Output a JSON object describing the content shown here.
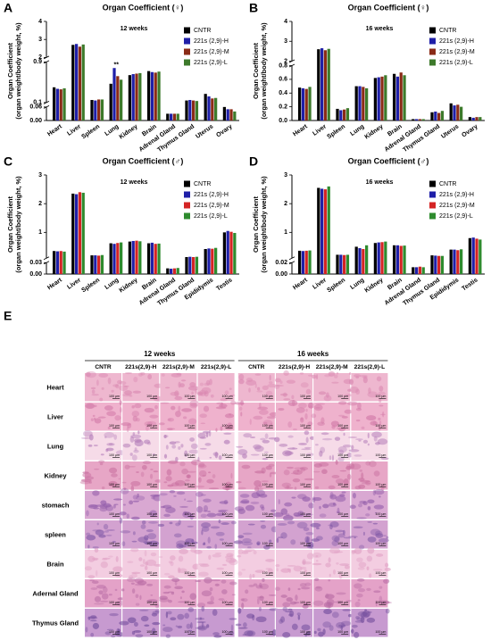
{
  "chart_data": [
    {
      "type": "bar",
      "panel_label": "A",
      "title": "Organ Coefficient (♀)",
      "subtitle": "12 weeks",
      "y_label": [
        "Organ Coefficient",
        "(organ weight/body weight, %)"
      ],
      "categories": [
        "Heart",
        "Liver",
        "Spleen",
        "Lung",
        "Kidney",
        "Brain",
        "Adrenal Gland",
        "Thymus Gland",
        "Uterus",
        "Ovary"
      ],
      "ylim": [
        0,
        4
      ],
      "y_breaks": [
        [
          0.06,
          0.1
        ],
        [
          0.9,
          2
        ]
      ],
      "yticks": [
        {
          "value": 0,
          "label": "0.00"
        },
        0.06,
        0.1,
        0.9,
        2,
        3,
        4
      ],
      "series": [
        {
          "name": "CNTR",
          "color": "#000000",
          "values": [
            0.4,
            2.7,
            0.15,
            0.47,
            0.64,
            0.72,
            0.03,
            0.14,
            0.27,
            0.06
          ]
        },
        {
          "name": "221s (2,9)-H",
          "color": "#1f1fa8",
          "values": [
            0.37,
            2.75,
            0.14,
            0.78,
            0.66,
            0.7,
            0.03,
            0.15,
            0.22,
            0.05
          ]
        },
        {
          "name": "221s (2,9)-M",
          "color": "#8a2b17",
          "values": [
            0.36,
            2.6,
            0.16,
            0.62,
            0.67,
            0.69,
            0.03,
            0.14,
            0.18,
            0.05
          ]
        },
        {
          "name": "221s (2,9)-L",
          "color": "#3d7a2b",
          "values": [
            0.38,
            2.72,
            0.16,
            0.55,
            0.68,
            0.71,
            0.03,
            0.13,
            0.19,
            0.04
          ]
        }
      ],
      "annotations": [
        {
          "text": "**",
          "category": "Lung",
          "y": 0.84
        }
      ]
    },
    {
      "type": "bar",
      "panel_label": "B",
      "title": "Organ Coefficient (♀)",
      "subtitle": "16 weeks",
      "y_label": [
        "Organ Coefficient",
        "(organ weight/body weight, %)"
      ],
      "categories": [
        "Heart",
        "Liver",
        "Spleen",
        "Lung",
        "Kidney",
        "Brain",
        "Adrenal Gland",
        "Thymus Gland",
        "Uterus",
        "Ovary"
      ],
      "ylim": [
        0,
        4
      ],
      "y_breaks": [
        [
          0.8,
          2
        ]
      ],
      "yticks": [
        {
          "value": 0,
          "label": "0.0"
        },
        0.2,
        0.4,
        0.6,
        0.8,
        2,
        3,
        4
      ],
      "series": [
        {
          "name": "CNTR",
          "color": "#000000",
          "values": [
            0.48,
            2.6,
            0.17,
            0.5,
            0.62,
            0.68,
            0.02,
            0.12,
            0.25,
            0.05
          ]
        },
        {
          "name": "221s (2,9)-H",
          "color": "#1f1fa8",
          "values": [
            0.47,
            2.65,
            0.15,
            0.5,
            0.63,
            0.64,
            0.02,
            0.13,
            0.22,
            0.04
          ]
        },
        {
          "name": "221s (2,9)-M",
          "color": "#8a2b17",
          "values": [
            0.46,
            2.55,
            0.16,
            0.49,
            0.64,
            0.7,
            0.02,
            0.11,
            0.23,
            0.05
          ]
        },
        {
          "name": "221s (2,9)-L",
          "color": "#3d7a2b",
          "values": [
            0.49,
            2.62,
            0.18,
            0.47,
            0.66,
            0.66,
            0.02,
            0.14,
            0.2,
            0.05
          ]
        }
      ]
    },
    {
      "type": "bar",
      "panel_label": "C",
      "title": "Organ Coefficient (♂)",
      "subtitle": "12 weeks",
      "y_label": [
        "Organ Coefficient",
        "(organ weight/body weight, %)"
      ],
      "categories": [
        "Heart",
        "Liver",
        "Spleen",
        "Lung",
        "Kidney",
        "Brain",
        "Adrenal Gland",
        "Thymus Gland",
        "Epididymis",
        "Testis"
      ],
      "ylim": [
        0,
        3
      ],
      "y_breaks": [
        [
          0.03,
          0.1
        ]
      ],
      "yticks": [
        {
          "value": 0,
          "label": "0.00"
        },
        0.03,
        1,
        2,
        3
      ],
      "series": [
        {
          "name": "CNTR",
          "color": "#000000",
          "values": [
            0.35,
            2.35,
            0.2,
            0.62,
            0.68,
            0.62,
            0.015,
            0.14,
            0.42,
            1.0
          ]
        },
        {
          "name": "221s (2,9)-H",
          "color": "#1f1fa8",
          "values": [
            0.34,
            2.33,
            0.2,
            0.6,
            0.7,
            0.64,
            0.014,
            0.15,
            0.44,
            1.05
          ]
        },
        {
          "name": "221s (2,9)-M",
          "color": "#d42424",
          "values": [
            0.35,
            2.4,
            0.19,
            0.63,
            0.71,
            0.6,
            0.015,
            0.14,
            0.43,
            1.02
          ]
        },
        {
          "name": "221s (2,9)-L",
          "color": "#2e8b2e",
          "values": [
            0.33,
            2.38,
            0.21,
            0.65,
            0.69,
            0.61,
            0.016,
            0.15,
            0.46,
            0.98
          ]
        }
      ]
    },
    {
      "type": "bar",
      "panel_label": "D",
      "title": "Organ Coefficient (♂)",
      "subtitle": "16 weeks",
      "y_label": [
        "Organ Coefficient",
        "(organ weight/body weight, %)"
      ],
      "categories": [
        "Heart",
        "Liver",
        "Spleen",
        "Lung",
        "Kidney",
        "Brain",
        "Adrenal Gland",
        "Thymus Gland",
        "Epididymis",
        "Testis"
      ],
      "ylim": [
        0,
        3
      ],
      "y_breaks": [
        [
          0.02,
          0.1
        ]
      ],
      "yticks": [
        {
          "value": 0,
          "label": "0.00"
        },
        0.02,
        1,
        2,
        3
      ],
      "series": [
        {
          "name": "CNTR",
          "color": "#000000",
          "values": [
            0.36,
            2.55,
            0.22,
            0.5,
            0.63,
            0.55,
            0.012,
            0.2,
            0.4,
            0.8
          ]
        },
        {
          "name": "221s (2,9)-H",
          "color": "#1f1fa8",
          "values": [
            0.35,
            2.52,
            0.22,
            0.45,
            0.65,
            0.55,
            0.012,
            0.19,
            0.4,
            0.82
          ]
        },
        {
          "name": "221s (2,9)-M",
          "color": "#d42424",
          "values": [
            0.36,
            2.5,
            0.21,
            0.42,
            0.66,
            0.53,
            0.013,
            0.18,
            0.38,
            0.78
          ]
        },
        {
          "name": "221s (2,9)-L",
          "color": "#2e8b2e",
          "values": [
            0.37,
            2.6,
            0.22,
            0.55,
            0.68,
            0.54,
            0.012,
            0.18,
            0.41,
            0.75
          ]
        }
      ]
    }
  ],
  "histology": {
    "panel_label": "E",
    "groups": [
      "12 weeks",
      "16 weeks"
    ],
    "columns": [
      "CNTR",
      "221s(2,9)-H",
      "221s(2,9)-M",
      "221s(2,9)-L",
      "CNTR",
      "221s(2,9)-H",
      "221s(2,9)-M",
      "221s(2,9)-L"
    ],
    "rows": [
      "Heart",
      "Liver",
      "Lung",
      "Kidney",
      "stomach",
      "spleen",
      "Brain",
      "Adernal Gland",
      "Thymus Gland"
    ],
    "scale_bar": "100 μm"
  }
}
